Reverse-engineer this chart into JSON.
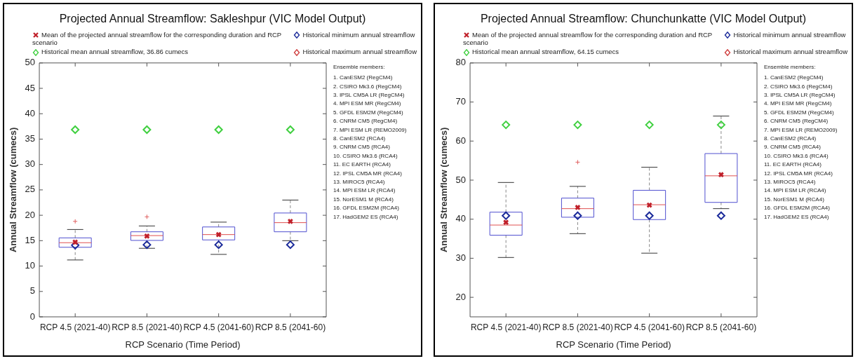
{
  "chart_data": [
    {
      "type": "box",
      "title": "Projected Annual Streamflow: Sakleshpur (VIC Model Output)",
      "xlabel": "RCP Scenario (Time Period)",
      "ylabel": "Annual Streamflow (cumecs)",
      "categories": [
        "RCP 4.5 (2021-40)",
        "RCP 8.5 (2021-40)",
        "RCP 4.5 (2041-60)",
        "RCP 8.5 (2041-60)"
      ],
      "ylim": [
        0,
        50
      ],
      "yticks": [
        0,
        5,
        10,
        15,
        20,
        25,
        30,
        35,
        40,
        45,
        50
      ],
      "grid": false,
      "legend": "top",
      "series": [
        {
          "type": "box",
          "color": "#5050d0",
          "boxes": [
            {
              "low": 11.2,
              "q1": 13.7,
              "median": 14.6,
              "q3": 15.55,
              "high": 17.2,
              "outliers": [
                18.8
              ]
            },
            {
              "low": 13.5,
              "q1": 15.05,
              "median": 16.0,
              "q3": 16.75,
              "high": 17.9,
              "outliers": [
                19.7
              ]
            },
            {
              "low": 12.3,
              "q1": 15.15,
              "median": 16.2,
              "q3": 17.7,
              "high": 18.65
            },
            {
              "low": 15.0,
              "q1": 16.75,
              "median": 18.55,
              "q3": 20.45,
              "high": 23.0
            }
          ]
        },
        {
          "type": "scatter",
          "name": "Mean of the projected annual streamflow for the corresponding duration and RCP scenario",
          "color": "#c0202a",
          "marker": "cross",
          "x": [
            "RCP 4.5 (2021-40)",
            "RCP 8.5 (2021-40)",
            "RCP 4.5 (2041-60)",
            "RCP 8.5 (2041-60)"
          ],
          "values": [
            14.7,
            15.9,
            16.2,
            18.8
          ]
        },
        {
          "type": "scatter",
          "name": "Historical minimum annual streamflow",
          "color": "#1a2a9a",
          "marker": "diamond",
          "x": [
            "RCP 4.5 (2021-40)",
            "RCP 8.5 (2021-40)",
            "RCP 4.5 (2041-60)",
            "RCP 8.5 (2041-60)"
          ],
          "values": [
            14.1,
            14.2,
            14.2,
            14.2
          ]
        },
        {
          "type": "scatter",
          "name": "Historical mean annual streamflow, 36.86 cumecs",
          "color": "#40d040",
          "marker": "diamond",
          "x": [
            "RCP 4.5 (2021-40)",
            "RCP 8.5 (2021-40)",
            "RCP 4.5 (2041-60)",
            "RCP 8.5 (2041-60)"
          ],
          "values": [
            36.86,
            36.86,
            36.86,
            36.86
          ]
        },
        {
          "type": "scatter",
          "name": "Historical maximum annual streamflow",
          "color": "#d04040",
          "marker": "diamond",
          "x": [
            "RCP 4.5 (2021-40)",
            "RCP 8.5 (2021-40)",
            "RCP 4.5 (2041-60)",
            "RCP 8.5 (2041-60)"
          ],
          "values": [
            null,
            null,
            null,
            null
          ]
        }
      ],
      "annotations": [
        "Ensemble members:",
        "1. CanESM2 (RegCM4)",
        "2. CSIRO Mk3.6 (RegCM4)",
        "3. IPSL CM5A LR (RegCM4)",
        "4. MPI ESM MR (RegCM4)",
        "5. GFDL ESM2M (RegCM4)",
        "6. CNRM CM5 (RegCM4)",
        "7. MPI ESM LR (REMO2009)",
        "8. CanESM2 (RCA4)",
        "9. CNRM CM5 (RCA4)",
        "10. CSIRO Mk3.6 (RCA4)",
        "11. EC EARTH (RCA4)",
        "12. IPSL CM5A MR (RCA4)",
        "13. MIROC5 (RCA4)",
        "14. MPI ESM LR (RCA4)",
        "15. NorESM1 M (RCA4)",
        "16. GFDL ESM2M (RCA4)",
        "17. HadGEM2 ES (RCA4)"
      ]
    },
    {
      "type": "box",
      "title": "Projected Annual Streamflow: Chunchunkatte (VIC Model Output)",
      "xlabel": "RCP Scenario (Time Period)",
      "ylabel": "Annual Streamflow (cumecs)",
      "categories": [
        "RCP 4.5 (2021-40)",
        "RCP 8.5 (2021-40)",
        "RCP 4.5 (2041-60)",
        "RCP 8.5 (2041-60)"
      ],
      "ylim": [
        15,
        80
      ],
      "yticks": [
        20,
        30,
        40,
        50,
        60,
        70,
        80
      ],
      "grid": false,
      "legend": "top",
      "series": [
        {
          "type": "box",
          "color": "#5050d0",
          "boxes": [
            {
              "low": 30.2,
              "q1": 35.9,
              "median": 38.5,
              "q3": 41.8,
              "high": 49.4
            },
            {
              "low": 36.3,
              "q1": 40.5,
              "median": 42.7,
              "q3": 45.4,
              "high": 48.4,
              "outliers": [
                54.6
              ]
            },
            {
              "low": 31.3,
              "q1": 39.9,
              "median": 43.7,
              "q3": 47.4,
              "high": 53.3
            },
            {
              "low": 42.7,
              "q1": 44.3,
              "median": 51.1,
              "q3": 56.8,
              "high": 66.4
            }
          ]
        },
        {
          "type": "scatter",
          "name": "Mean of the projected annual streamflow for the corresponding duration and RCP scenario",
          "color": "#c0202a",
          "marker": "cross",
          "x": [
            "RCP 4.5 (2021-40)",
            "RCP 8.5 (2021-40)",
            "RCP 4.5 (2041-60)",
            "RCP 8.5 (2041-60)"
          ],
          "values": [
            39.2,
            43.0,
            43.6,
            51.4
          ]
        },
        {
          "type": "scatter",
          "name": "Historical minimum annual streamflow",
          "color": "#1a2a9a",
          "marker": "diamond",
          "x": [
            "RCP 4.5 (2021-40)",
            "RCP 8.5 (2021-40)",
            "RCP 4.5 (2041-60)",
            "RCP 8.5 (2041-60)"
          ],
          "values": [
            40.9,
            40.9,
            40.9,
            40.9
          ]
        },
        {
          "type": "scatter",
          "name": "Historical mean annual streamflow, 64.15 cumecs",
          "color": "#40d040",
          "marker": "diamond",
          "x": [
            "RCP 4.5 (2021-40)",
            "RCP 8.5 (2021-40)",
            "RCP 4.5 (2041-60)",
            "RCP 8.5 (2041-60)"
          ],
          "values": [
            64.15,
            64.15,
            64.15,
            64.15
          ]
        },
        {
          "type": "scatter",
          "name": "Historical maximum annual streamflow",
          "color": "#d04040",
          "marker": "diamond",
          "x": [
            "RCP 4.5 (2021-40)",
            "RCP 8.5 (2021-40)",
            "RCP 4.5 (2041-60)",
            "RCP 8.5 (2041-60)"
          ],
          "values": [
            null,
            null,
            null,
            null
          ]
        }
      ],
      "annotations": [
        "Ensemble members:",
        "1. CanESM2 (RegCM4)",
        "2. CSIRO Mk3.6 (RegCM4)",
        "3. IPSL CM5A LR (RegCM4)",
        "4. MPI ESM MR (RegCM4)",
        "5. GFDL ESM2M (RegCM4)",
        "6. CNRM CM5 (RegCM4)",
        "7. MPI ESM LR (REMO2009)",
        "8. CanESM2 (RCA4)",
        "9. CNRM CM5 (RCA4)",
        "10. CSIRO Mk3.6 (RCA4)",
        "11. EC EARTH (RCA4)",
        "12. IPSL CM5A MR (RCA4)",
        "13. MIROC5 (RCA4)",
        "14. MPI ESM LR (RCA4)",
        "15. NorESM1 M (RCA4)",
        "16. GFDL ESM2M (RCA4)",
        "17. HadGEM2 ES (RCA4)"
      ]
    }
  ]
}
